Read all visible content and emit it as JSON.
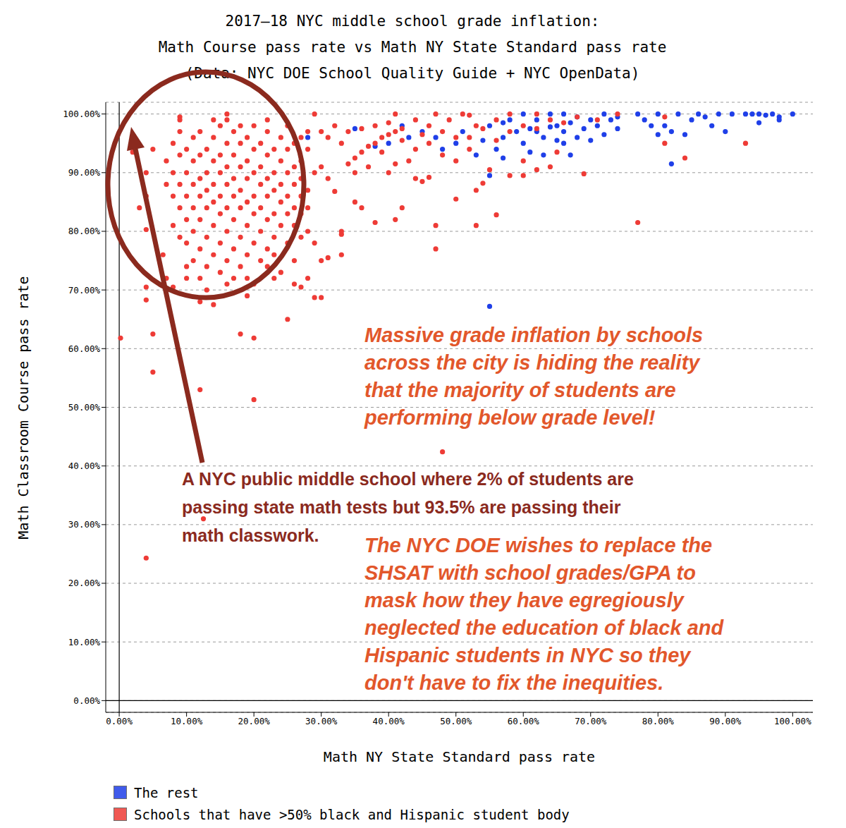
{
  "chart_data": {
    "type": "scatter",
    "title": [
      "2017–18 NYC middle school grade inflation:",
      "Math Course pass rate vs Math NY State Standard pass rate"
    ],
    "subtitle": "(Data: NYC DOE School Quality Guide + NYC OpenData)",
    "x_label": "Math NY State Standard pass rate",
    "y_label": "Math Classroom Course pass rate",
    "xlim": [
      -2,
      103
    ],
    "ylim": [
      -2,
      102
    ],
    "xticks": [
      {
        "value": 0,
        "label": "0.00%"
      },
      {
        "value": 10,
        "label": "10.00%"
      },
      {
        "value": 20,
        "label": "20.00%"
      },
      {
        "value": 30,
        "label": "30.00%"
      },
      {
        "value": 40,
        "label": "40.00%"
      },
      {
        "value": 50,
        "label": "50.00%"
      },
      {
        "value": 60,
        "label": "60.00%"
      },
      {
        "value": 70,
        "label": "70.00%"
      },
      {
        "value": 80,
        "label": "80.00%"
      },
      {
        "value": 90,
        "label": "90.00%"
      },
      {
        "value": 100,
        "label": "100.00%"
      }
    ],
    "yticks": [
      {
        "value": 0,
        "label": "0.00%"
      },
      {
        "value": 10,
        "label": "10.00%"
      },
      {
        "value": 20,
        "label": "20.00%"
      },
      {
        "value": 30,
        "label": "30.00%"
      },
      {
        "value": 40,
        "label": "40.00%"
      },
      {
        "value": 50,
        "label": "50.00%"
      },
      {
        "value": 60,
        "label": "60.00%"
      },
      {
        "value": 70,
        "label": "70.00%"
      },
      {
        "value": 80,
        "label": "80.00%"
      },
      {
        "value": 90,
        "label": "90.00%"
      },
      {
        "value": 100,
        "label": "100.00%"
      }
    ],
    "grid": true,
    "legend": "bottom",
    "annotations": [
      {
        "text": [
          "Massive grade inflation by schools",
          "across the city is hiding the reality",
          "that the majority of students are",
          "performing below grade level!"
        ]
      },
      {
        "text": [
          "A NYC public middle school where 2% of students are",
          "passing state math tests but 93.5% are passing their",
          "math classwork."
        ]
      },
      {
        "text": [
          "The NYC DOE wishes to replace the",
          "SHSAT with school grades/GPA to",
          "mask how they have egregiously",
          "neglected the education of black and",
          "Hispanic students in NYC so they",
          "don't have to fix the inequities."
        ]
      }
    ],
    "series": [
      {
        "name": "The rest",
        "color": "#1f3fe8",
        "x": [
          28,
          35,
          38,
          40,
          42,
          43,
          45,
          47,
          48,
          50,
          51,
          53,
          54,
          55,
          55,
          55,
          56,
          57,
          57,
          58,
          59,
          60,
          61,
          61,
          62,
          63,
          63,
          64,
          65,
          65,
          66,
          66,
          67,
          67,
          68,
          68,
          69,
          70,
          70,
          71,
          72,
          72,
          73,
          74,
          74,
          77,
          78,
          79,
          80,
          80,
          81,
          82,
          82,
          83,
          84,
          85,
          86,
          87,
          88,
          89,
          90,
          91,
          93,
          94,
          95,
          95,
          96,
          97,
          98,
          98,
          100,
          57,
          60,
          62,
          64,
          66
        ],
        "values": [
          96,
          97.5,
          94.5,
          95,
          98,
          96,
          97,
          96,
          94,
          95,
          97,
          93,
          95.5,
          89.5,
          67.2,
          98,
          94,
          92.5,
          96,
          99,
          97,
          95,
          93.5,
          97.5,
          99,
          96,
          93,
          100,
          98,
          95.5,
          97,
          100,
          93,
          98.5,
          96,
          99.5,
          97.5,
          95.5,
          99,
          98,
          96.5,
          100,
          99,
          97.5,
          99.5,
          100,
          99,
          98,
          96.5,
          100,
          98,
          91.5,
          97,
          100,
          96.5,
          99,
          100,
          99.5,
          98,
          100,
          97,
          100,
          100,
          100,
          98.5,
          100,
          99.8,
          100,
          99.5,
          99,
          100,
          98.5,
          100,
          97,
          97.8,
          95
        ]
      },
      {
        "name": "Schools that have >50% black and Hispanic student body",
        "color": "#ee3b36",
        "x": [
          0.2,
          2,
          4,
          5,
          5,
          4,
          4,
          7,
          6.5,
          4,
          4,
          3,
          4,
          5,
          12.5,
          12,
          20,
          20,
          18,
          25,
          48,
          12,
          14,
          19,
          26,
          27,
          30,
          29,
          9,
          16,
          29,
          41,
          47,
          52,
          8,
          10,
          30,
          31,
          33,
          29,
          33,
          35,
          36,
          38,
          42,
          41,
          47,
          47,
          53,
          56,
          45,
          46,
          50,
          53,
          54,
          55,
          58,
          60,
          62,
          64,
          65,
          69,
          77,
          81,
          84,
          93,
          60,
          48,
          50,
          52,
          43,
          44,
          35,
          36,
          37,
          38,
          39,
          40,
          41,
          42,
          33,
          31,
          30,
          32,
          34,
          36,
          38,
          40,
          44,
          46,
          48,
          50,
          52,
          54,
          56,
          58,
          60,
          62,
          64,
          66,
          68,
          71,
          74,
          81,
          28,
          27,
          29,
          30,
          31,
          32,
          27,
          26,
          28,
          33,
          26,
          28,
          22,
          35,
          34,
          44,
          46,
          49,
          51,
          53,
          56,
          58,
          62,
          45,
          42,
          39,
          37,
          40,
          41,
          7,
          7,
          8,
          8,
          8,
          8,
          9,
          9,
          9,
          9,
          9,
          10,
          10,
          10,
          10,
          10,
          11,
          11,
          11,
          11,
          11,
          11,
          12,
          12,
          12,
          12,
          12,
          12,
          12,
          13,
          13,
          13,
          13,
          13,
          13,
          14,
          14,
          14,
          14,
          14,
          14,
          15,
          15,
          15,
          15,
          15,
          15,
          15,
          16,
          16,
          16,
          16,
          16,
          16,
          16,
          17,
          17,
          17,
          17,
          17,
          17,
          17,
          18,
          18,
          18,
          18,
          18,
          18,
          19,
          19,
          19,
          19,
          19,
          19,
          20,
          20,
          20,
          20,
          20,
          20,
          20,
          21,
          21,
          21,
          21,
          21,
          21,
          22,
          22,
          22,
          22,
          22,
          22,
          23,
          23,
          23,
          23,
          23,
          23,
          24,
          24,
          24,
          24,
          24,
          24,
          25,
          25,
          25,
          25,
          25,
          25,
          26,
          26,
          26,
          26,
          27,
          27,
          27,
          27,
          28,
          28,
          28,
          9,
          14,
          18,
          22,
          10,
          13,
          16,
          19,
          23
        ],
        "values": [
          61.8,
          93.5,
          24.3,
          56,
          62.5,
          68.3,
          70.5,
          72,
          76,
          80.3,
          86,
          84,
          90,
          94,
          31,
          53,
          51.3,
          61.8,
          62.5,
          65,
          42.4,
          68,
          67.5,
          69,
          71,
          70.5,
          68.7,
          68.7,
          99.5,
          100,
          100,
          100,
          100,
          99.8,
          70.5,
          72,
          75,
          75.5,
          76,
          78,
          79.5,
          85,
          84,
          81.5,
          84,
          82,
          77,
          81,
          81,
          82.8,
          88.5,
          89.2,
          85.5,
          87,
          88.2,
          90.5,
          89.5,
          89.5,
          90.5,
          91,
          93.5,
          89.8,
          81.5,
          95,
          92.5,
          95,
          92,
          93,
          92,
          94,
          92,
          89,
          90,
          93.5,
          94.5,
          95,
          96,
          96.5,
          97,
          97.5,
          95,
          96,
          97,
          98,
          97,
          97.5,
          98,
          98.5,
          99,
          98,
          97,
          96,
          96,
          97.5,
          95.5,
          97,
          98,
          97.5,
          99,
          98.5,
          99.5,
          99,
          100,
          99.5,
          94,
          92,
          90,
          91,
          89,
          86.8,
          86,
          81,
          80,
          80,
          75,
          72,
          74,
          92.5,
          91.5,
          94,
          95,
          99,
          100,
          98,
          99,
          100,
          100,
          96.5,
          95.5,
          93.5,
          91,
          90,
          91.5,
          88,
          92,
          81,
          86,
          90,
          95,
          79,
          84,
          88,
          93,
          97,
          82,
          86,
          90,
          94,
          78,
          80,
          84,
          88,
          92,
          96,
          75,
          77,
          82,
          86,
          89,
          93,
          97,
          72,
          79,
          84,
          87,
          90,
          94,
          74,
          76,
          81,
          85,
          88,
          92,
          96,
          78,
          83,
          86,
          90,
          93,
          98,
          73,
          75,
          80,
          84,
          88,
          91,
          95,
          99,
          77,
          82,
          86,
          89,
          93,
          97,
          72,
          74,
          79,
          84,
          87,
          91,
          95,
          76,
          81,
          85,
          89,
          92,
          96,
          78,
          83,
          86,
          90,
          94,
          98,
          71,
          75,
          80,
          84,
          88,
          91,
          95,
          77,
          82,
          86,
          89,
          93,
          97,
          79,
          83,
          87,
          90,
          94,
          76,
          81,
          85,
          88,
          92,
          96,
          73,
          78,
          83,
          86,
          90,
          94,
          98,
          84,
          88,
          91,
          95,
          79,
          83,
          89,
          96,
          84,
          87,
          97,
          99,
          99,
          98,
          99,
          74,
          70,
          71,
          72,
          72
        ]
      }
    ]
  }
}
